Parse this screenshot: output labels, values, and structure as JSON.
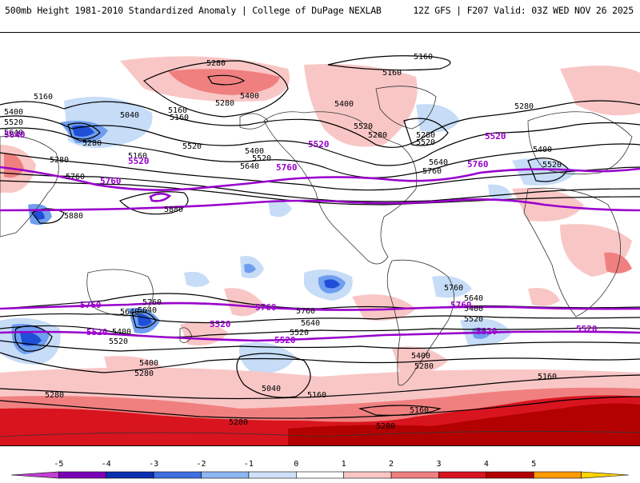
{
  "header": {
    "title_left": "500mb Height 1981-2010 Standardized Anomaly | College of DuPage NEXLAB",
    "title_right": "12Z GFS | F207 Valid: 03Z WED NOV 26 2025"
  },
  "colors": {
    "contour": "#000000",
    "highlight_contour": "#9900cc",
    "coastline": "#333333",
    "anom_neg_1": "#c6dcf7",
    "anom_neg_2": "#6f9ef0",
    "anom_neg_3": "#1e4fd6",
    "anom_pos_1": "#f9c6c6",
    "anom_pos_2": "#f08080",
    "anom_pos_3": "#d8141e",
    "anom_pos_4": "#b30000"
  },
  "contour_labels": {
    "black": [
      "5280",
      "5160",
      "5160",
      "5280",
      "5400",
      "5400",
      "5520",
      "5160",
      "5040",
      "5160",
      "5280",
      "5400",
      "5520",
      "5640",
      "5280",
      "5520",
      "5400",
      "5640",
      "5760",
      "5520",
      "5640",
      "5400",
      "5520",
      "5280",
      "5760",
      "5880",
      "5880",
      "5760",
      "5640",
      "5520",
      "5400",
      "5280",
      "5760",
      "5640",
      "5520",
      "5400",
      "5280",
      "5160",
      "5040",
      "5280",
      "5160",
      "5280",
      "5280",
      "5160",
      "5160",
      "5280",
      "5160",
      "5280",
      "5520",
      "5400",
      "5640",
      "5760",
      "5400",
      "5640",
      "5520"
    ],
    "purple": [
      "5640",
      "5520",
      "5760",
      "5520",
      "5760",
      "5520",
      "5760",
      "5760",
      "5760",
      "5760",
      "5520",
      "5520",
      "5520",
      "5520",
      "5520"
    ]
  },
  "colorbar": {
    "ticks": [
      "-5",
      "-4",
      "-3",
      "-2",
      "-1",
      "0",
      "1",
      "2",
      "3",
      "4",
      "5"
    ],
    "colors": [
      "#c040d0",
      "#7a00b8",
      "#0a2fb0",
      "#3f6fe0",
      "#8fb6f2",
      "#cfe1f8",
      "#ffffff",
      "#f9c6c6",
      "#f08080",
      "#d8141e",
      "#b30000",
      "#ff9a00",
      "#ffd400"
    ]
  }
}
